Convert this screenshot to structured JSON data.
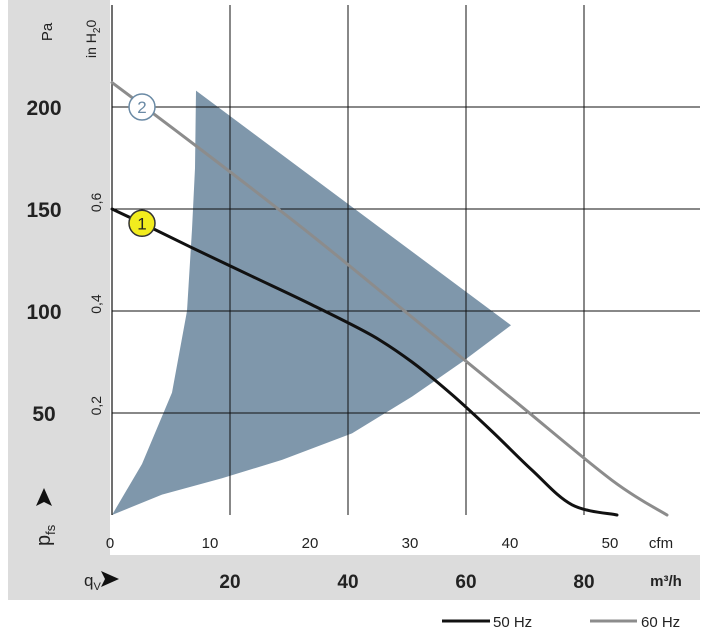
{
  "colors": {
    "panel": "#dcdcdc",
    "region": "#7f97ab",
    "grid": "#111111",
    "curve_50hz": "#111111",
    "curve_60hz": "#8c8c8c",
    "marker1_fill": "#f2ec1e",
    "marker2_fill": "#ffffff",
    "marker2_stroke": "#6a8aa5"
  },
  "chart_data": {
    "type": "line",
    "x_axis": {
      "primary_label": "q",
      "primary_label_sub": "V",
      "primary_unit": "m³/h",
      "primary_ticks": [
        "20",
        "40",
        "60",
        "80"
      ],
      "primary_tick_values": [
        20,
        40,
        60,
        80
      ],
      "secondary_unit": "cfm",
      "secondary_ticks": [
        "0",
        "10",
        "20",
        "30",
        "40",
        "50"
      ],
      "secondary_tick_values": [
        0,
        10,
        20,
        30,
        40,
        50
      ],
      "range_cfm": [
        0,
        59
      ]
    },
    "y_axis": {
      "primary_label": "p",
      "primary_label_sub": "fs",
      "primary_unit": "Pa",
      "primary_ticks": [
        "50",
        "100",
        "150",
        "200"
      ],
      "primary_tick_values": [
        50,
        100,
        150,
        200
      ],
      "secondary_unit_main": "in H",
      "secondary_unit_sub": "2",
      "secondary_unit_tail": "0",
      "secondary_ticks": [
        "0,2",
        "0,4",
        "0,6"
      ],
      "secondary_tick_values": [
        0.2,
        0.4,
        0.6
      ],
      "range_pa": [
        0,
        250
      ]
    },
    "grid": true,
    "operating_region": {
      "x_cfm": [
        0,
        3,
        6,
        7.5,
        8.0,
        8.3,
        8.4,
        39.9,
        35,
        30,
        24,
        17,
        11,
        5,
        0
      ],
      "y_pa": [
        0,
        25,
        60,
        100,
        140,
        170,
        208,
        93,
        75,
        58,
        40,
        27,
        18,
        10,
        0
      ]
    },
    "series": [
      {
        "name": "50 Hz",
        "marker": "1",
        "x": [
          0,
          3,
          8,
          14,
          20,
          26,
          30,
          34,
          38,
          42,
          46,
          50.5
        ],
        "y": [
          150,
          143,
          131,
          117,
          103,
          88,
          75,
          59,
          41,
          22,
          5,
          0
        ]
      },
      {
        "name": "60 Hz",
        "marker": "2",
        "x": [
          0,
          10,
          20,
          30,
          40,
          50,
          55.5
        ],
        "y": [
          212,
          175,
          137,
          97,
          57,
          17,
          0
        ]
      }
    ],
    "legend": {
      "placement": "bottom-right",
      "entries": [
        "50 Hz",
        "60 Hz"
      ]
    }
  }
}
